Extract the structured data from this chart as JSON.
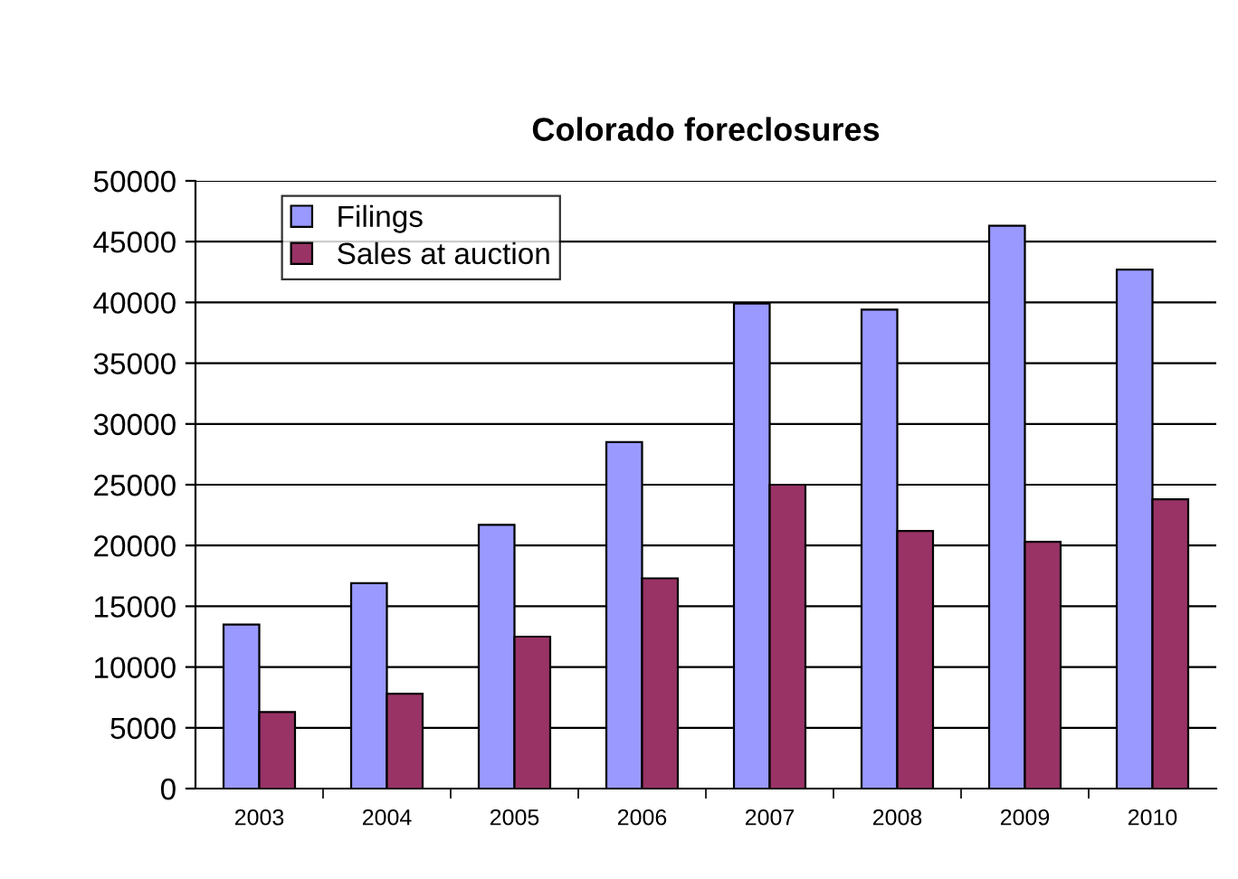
{
  "chart_data": {
    "type": "bar",
    "title": "Colorado foreclosures",
    "categories": [
      "2003",
      "2004",
      "2005",
      "2006",
      "2007",
      "2008",
      "2009",
      "2010"
    ],
    "series": [
      {
        "name": "Filings",
        "color": "#9999ff",
        "values": [
          13500,
          16900,
          21700,
          28500,
          39900,
          39400,
          46300,
          42700
        ]
      },
      {
        "name": "Sales at auction",
        "color": "#993366",
        "values": [
          6300,
          7800,
          12500,
          17300,
          25000,
          21200,
          20300,
          23800
        ]
      }
    ],
    "ylim": [
      0,
      50000
    ],
    "yticks": [
      0,
      5000,
      10000,
      15000,
      20000,
      25000,
      30000,
      35000,
      40000,
      45000,
      50000
    ],
    "grid": "y",
    "legend": "top left"
  }
}
